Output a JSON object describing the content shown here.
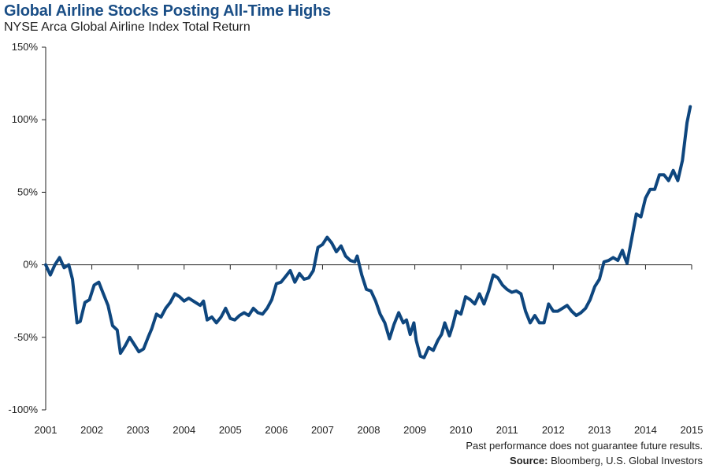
{
  "chart_data": {
    "type": "line",
    "title": "Global Airline Stocks Posting All-Time Highs",
    "subtitle": "NYSE Arca Global Airline Index Total Return",
    "xlabel": "",
    "ylabel": "",
    "xlim": [
      2001,
      2015
    ],
    "ylim": [
      -100,
      150
    ],
    "y_ticks": [
      "150%",
      "100%",
      "50%",
      "0%",
      "-50%",
      "-100%"
    ],
    "y_tick_values": [
      150,
      100,
      50,
      0,
      -50,
      -100
    ],
    "x_ticks": [
      "2001",
      "2002",
      "2003",
      "2004",
      "2005",
      "2006",
      "2007",
      "2008",
      "2009",
      "2010",
      "2011",
      "2012",
      "2013",
      "2014",
      "2015"
    ],
    "x_tick_values": [
      2001,
      2002,
      2003,
      2004,
      2005,
      2006,
      2007,
      2008,
      2009,
      2010,
      2011,
      2012,
      2013,
      2014,
      2015
    ],
    "grid": false,
    "series": [
      {
        "name": "",
        "color": "#0e467e",
        "x": [
          2001.0,
          2001.1,
          2001.2,
          2001.3,
          2001.4,
          2001.5,
          2001.58,
          2001.68,
          2001.75,
          2001.85,
          2001.95,
          2002.05,
          2002.15,
          2002.25,
          2002.35,
          2002.45,
          2002.55,
          2002.62,
          2002.72,
          2002.82,
          2002.92,
          2003.02,
          2003.12,
          2003.22,
          2003.3,
          2003.4,
          2003.5,
          2003.6,
          2003.7,
          2003.8,
          2003.9,
          2004.0,
          2004.1,
          2004.2,
          2004.3,
          2004.35,
          2004.42,
          2004.5,
          2004.6,
          2004.7,
          2004.8,
          2004.9,
          2005.0,
          2005.1,
          2005.2,
          2005.3,
          2005.4,
          2005.5,
          2005.6,
          2005.7,
          2005.8,
          2005.9,
          2006.0,
          2006.1,
          2006.2,
          2006.3,
          2006.4,
          2006.5,
          2006.6,
          2006.7,
          2006.8,
          2006.9,
          2007.0,
          2007.1,
          2007.2,
          2007.3,
          2007.4,
          2007.5,
          2007.6,
          2007.7,
          2007.75,
          2007.85,
          2007.95,
          2008.05,
          2008.15,
          2008.25,
          2008.35,
          2008.45,
          2008.55,
          2008.65,
          2008.75,
          2008.82,
          2008.9,
          2008.98,
          2009.03,
          2009.12,
          2009.2,
          2009.3,
          2009.4,
          2009.5,
          2009.58,
          2009.65,
          2009.75,
          2009.82,
          2009.9,
          2010.0,
          2010.1,
          2010.2,
          2010.3,
          2010.4,
          2010.5,
          2010.6,
          2010.7,
          2010.8,
          2010.9,
          2011.0,
          2011.1,
          2011.2,
          2011.3,
          2011.4,
          2011.5,
          2011.6,
          2011.7,
          2011.8,
          2011.9,
          2012.0,
          2012.1,
          2012.2,
          2012.3,
          2012.4,
          2012.5,
          2012.6,
          2012.7,
          2012.8,
          2012.9,
          2013.0,
          2013.1,
          2013.2,
          2013.3,
          2013.4,
          2013.5,
          2013.55,
          2013.6,
          2013.7,
          2013.8,
          2013.9,
          2014.0,
          2014.1,
          2014.2,
          2014.3,
          2014.4,
          2014.5,
          2014.6,
          2014.7,
          2014.8,
          2014.9,
          2014.97
        ],
        "y": [
          0,
          -7,
          0,
          5,
          -2,
          0,
          -10,
          -40,
          -39,
          -26,
          -24,
          -14,
          -12,
          -20,
          -28,
          -42,
          -45,
          -61,
          -56,
          -50,
          -55,
          -60,
          -58,
          -50,
          -44,
          -34,
          -36,
          -30,
          -26,
          -20,
          -22,
          -25,
          -23,
          -25,
          -27,
          -28,
          -25,
          -38,
          -36,
          -40,
          -36,
          -30,
          -37,
          -38,
          -35,
          -33,
          -35,
          -30,
          -33,
          -34,
          -30,
          -24,
          -13,
          -12,
          -8,
          -4,
          -12,
          -6,
          -10,
          -9,
          -4,
          12,
          14,
          19,
          15,
          9,
          13,
          6,
          3,
          2,
          6,
          -7,
          -17,
          -18,
          -25,
          -34,
          -40,
          -51,
          -41,
          -33,
          -40,
          -38,
          -48,
          -40,
          -52,
          -63,
          -64,
          -57,
          -59,
          -52,
          -48,
          -40,
          -49,
          -42,
          -32,
          -34,
          -22,
          -24,
          -27,
          -20,
          -27,
          -18,
          -7,
          -9,
          -14,
          -17,
          -19,
          -18,
          -20,
          -32,
          -40,
          -35,
          -40,
          -40,
          -27,
          -32,
          -32,
          -30,
          -28,
          -32,
          -35,
          -33,
          -30,
          -24,
          -15,
          -10,
          2,
          3,
          5,
          3,
          10,
          5,
          1,
          18,
          35,
          33,
          46,
          52,
          52,
          62,
          62,
          58,
          65,
          58,
          72,
          98,
          109
        ]
      }
    ]
  },
  "footer": {
    "disclaimer": "Past performance does not guarantee future results.",
    "source_label": "Source:",
    "source_text": "Bloomberg, U.S. Global Investors"
  }
}
